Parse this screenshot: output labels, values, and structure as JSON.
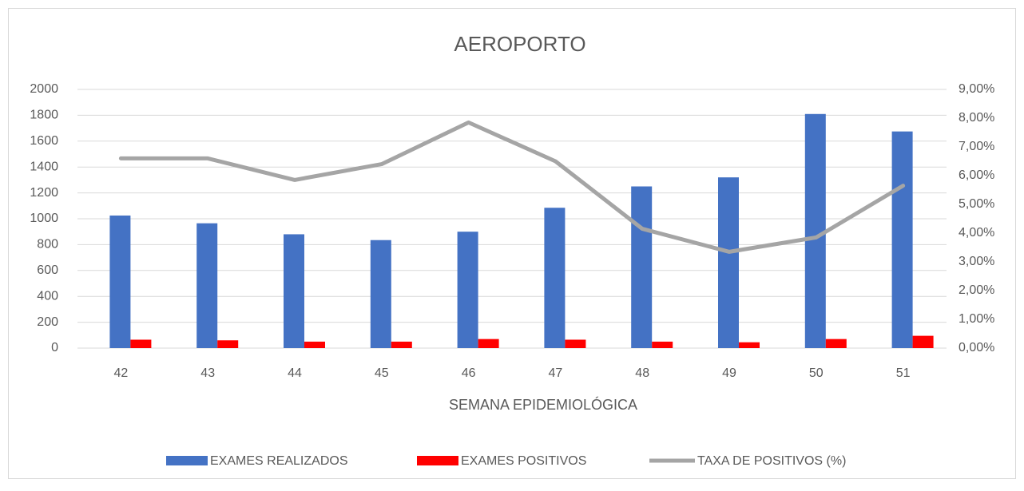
{
  "chart_data": {
    "type": "bar-line",
    "title": "AEROPORTO",
    "x_label": "SEMANA EPIDEMIOLÓGICA",
    "categories": [
      "42",
      "43",
      "44",
      "45",
      "46",
      "47",
      "48",
      "49",
      "50",
      "51"
    ],
    "series": [
      {
        "name": "EXAMES REALIZADOS",
        "type": "bar",
        "color": "#4472c4",
        "values": [
          1025,
          965,
          880,
          835,
          900,
          1085,
          1250,
          1320,
          1810,
          1675
        ]
      },
      {
        "name": "EXAMES POSITIVOS",
        "type": "bar",
        "color": "#ff0000",
        "values": [
          65,
          60,
          50,
          50,
          70,
          65,
          50,
          45,
          70,
          95
        ]
      },
      {
        "name": "TAXA DE POSITIVOS (%)",
        "type": "line",
        "axis": "y2",
        "color": "#a5a5a5",
        "values": [
          6.6,
          6.6,
          5.85,
          6.4,
          7.85,
          6.5,
          4.15,
          3.35,
          3.85,
          5.65
        ]
      }
    ],
    "ylim": [
      0,
      2000
    ],
    "yticks": [
      0,
      200,
      400,
      600,
      800,
      1000,
      1200,
      1400,
      1600,
      1800,
      2000
    ],
    "y2lim": [
      0,
      9
    ],
    "y2ticks": [
      {
        "value": 0,
        "label": "0,00%"
      },
      {
        "value": 1,
        "label": "1,00%"
      },
      {
        "value": 2,
        "label": "2,00%"
      },
      {
        "value": 3,
        "label": "3,00%"
      },
      {
        "value": 4,
        "label": "4,00%"
      },
      {
        "value": 5,
        "label": "5,00%"
      },
      {
        "value": 6,
        "label": "6,00%"
      },
      {
        "value": 7,
        "label": "7,00%"
      },
      {
        "value": 8,
        "label": "8,00%"
      },
      {
        "value": 9,
        "label": "9,00%"
      }
    ],
    "grid": true,
    "legend": "bottom"
  }
}
